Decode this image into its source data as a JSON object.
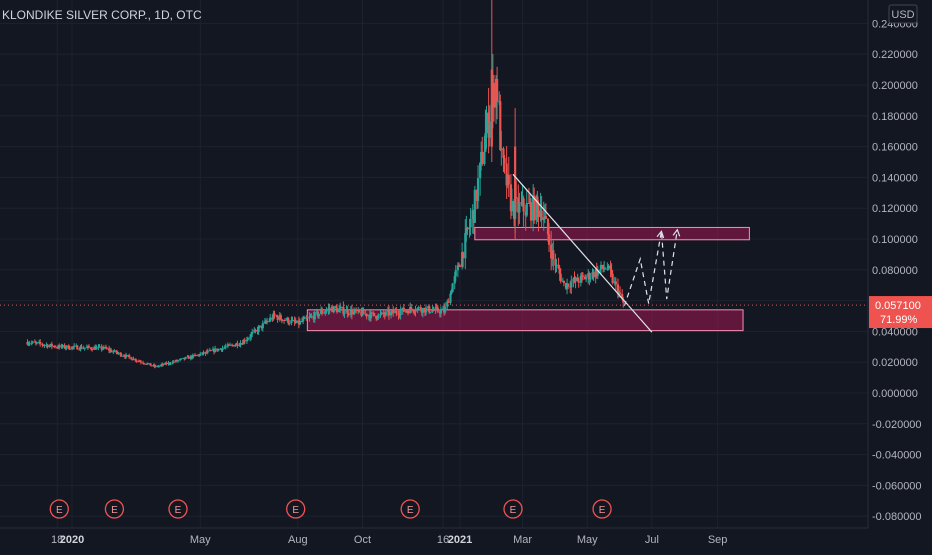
{
  "header": {
    "title": "KLONDIKE SILVER CORP., 1D, OTC"
  },
  "currency": "USD",
  "colors": {
    "background": "#131722",
    "up": "#26a69a",
    "down": "#ef5350",
    "zone_fill": "#c2185b",
    "grid": "#1e2230",
    "text": "#b2b5be",
    "price_tag": "#ef5350"
  },
  "current_price": {
    "value": 0.0571,
    "label": "0.057100",
    "change_label": "71.99%"
  },
  "earnings_marker": {
    "label": "E"
  },
  "chart_data": {
    "type": "candlestick",
    "title": "KLONDIKE SILVER CORP., 1D, OTC",
    "ylim": [
      -0.082,
      0.26
    ],
    "y_ticks": [
      -0.08,
      -0.06,
      -0.04,
      -0.02,
      0.0,
      0.02,
      0.04,
      0.06,
      0.08,
      0.1,
      0.12,
      0.14,
      0.16,
      0.18,
      0.2,
      0.22,
      0.24
    ],
    "y_tick_labels": [
      "-0.080000",
      "-0.060000",
      "-0.040000",
      "-0.020000",
      "0.000000",
      "0.020000",
      "0.040000",
      "0.060000",
      "0.080000",
      "0.100000",
      "0.120000",
      "0.140000",
      "0.160000",
      "0.180000",
      "0.200000",
      "0.220000",
      "0.240000"
    ],
    "x_tick_labels": [
      "18",
      "2020",
      "May",
      "Aug",
      "Oct",
      "16",
      "2021",
      "Mar",
      "May",
      "Jul",
      "Sep"
    ],
    "x_tick_dates": [
      "2019-12-18",
      "2020-01-01",
      "2020-05-01",
      "2020-08-01",
      "2020-10-01",
      "2020-12-16",
      "2021-01-01",
      "2021-03-01",
      "2021-05-01",
      "2021-07-01",
      "2021-09-01"
    ],
    "x_tick_bold": [
      false,
      true,
      false,
      false,
      false,
      false,
      true,
      false,
      false,
      false,
      false
    ],
    "anchors": [
      {
        "date": "2019-11-20",
        "price": 0.033
      },
      {
        "date": "2019-12-20",
        "price": 0.03
      },
      {
        "date": "2020-02-01",
        "price": 0.029
      },
      {
        "date": "2020-03-20",
        "price": 0.017
      },
      {
        "date": "2020-05-01",
        "price": 0.025
      },
      {
        "date": "2020-06-10",
        "price": 0.033
      },
      {
        "date": "2020-07-10",
        "price": 0.05
      },
      {
        "date": "2020-08-01",
        "price": 0.045
      },
      {
        "date": "2020-09-01",
        "price": 0.055
      },
      {
        "date": "2020-10-15",
        "price": 0.05
      },
      {
        "date": "2020-11-20",
        "price": 0.055
      },
      {
        "date": "2020-12-18",
        "price": 0.053
      },
      {
        "date": "2021-01-01",
        "price": 0.085
      },
      {
        "date": "2021-01-15",
        "price": 0.12
      },
      {
        "date": "2021-01-25",
        "price": 0.165
      },
      {
        "date": "2021-02-05",
        "price": 0.205
      },
      {
        "date": "2021-02-10",
        "price": 0.15
      },
      {
        "date": "2021-02-20",
        "price": 0.12
      },
      {
        "date": "2021-03-05",
        "price": 0.12
      },
      {
        "date": "2021-03-20",
        "price": 0.12
      },
      {
        "date": "2021-03-30",
        "price": 0.088
      },
      {
        "date": "2021-04-10",
        "price": 0.07
      },
      {
        "date": "2021-04-30",
        "price": 0.075
      },
      {
        "date": "2021-05-20",
        "price": 0.082
      },
      {
        "date": "2021-06-05",
        "price": 0.058
      }
    ],
    "zones": [
      {
        "date_from": "2021-01-15",
        "date_to": "2021-10-01",
        "price_low": 0.0995,
        "price_high": 0.1075
      },
      {
        "date_from": "2020-08-10",
        "date_to": "2021-09-25",
        "price_low": 0.0405,
        "price_high": 0.054
      }
    ],
    "trendline": {
      "date_from": "2021-02-20",
      "price_from": 0.142,
      "date_to": "2021-07-01",
      "price_to": 0.0395
    },
    "projection": [
      {
        "date": "2021-06-05",
        "price": 0.0565
      },
      {
        "date": "2021-06-20",
        "price": 0.087
      },
      {
        "date": "2021-06-28",
        "price": 0.058
      },
      {
        "date": "2021-07-10",
        "price": 0.105
      },
      {
        "date": "2021-07-15",
        "price": 0.061
      },
      {
        "date": "2021-07-25",
        "price": 0.106
      }
    ],
    "earnings_dates": [
      "2019-12-20",
      "2020-02-10",
      "2020-04-10",
      "2020-07-30",
      "2020-11-15",
      "2021-02-20",
      "2021-05-15"
    ]
  }
}
